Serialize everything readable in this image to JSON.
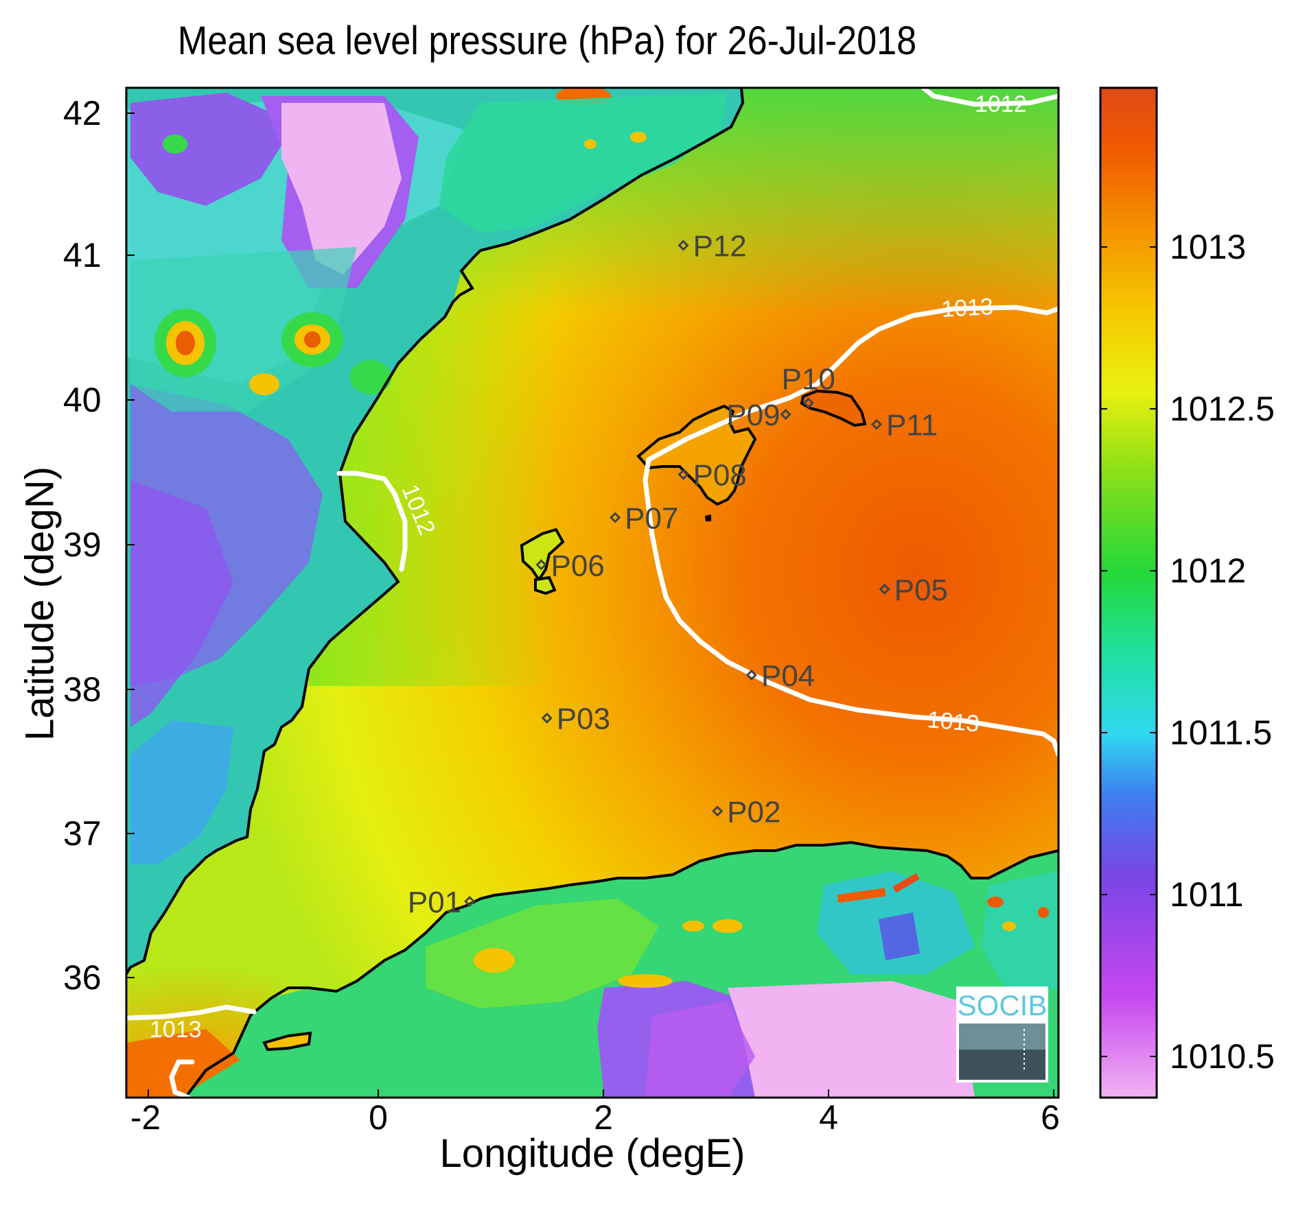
{
  "title": "Mean sea level pressure (hPa) for 26-Jul-2018",
  "xlabel": "Longitude (degE)",
  "ylabel": "Latitude (degN)",
  "x_ticks": [
    "-2",
    "0",
    "2",
    "4",
    "6"
  ],
  "y_ticks": [
    "42",
    "41",
    "40",
    "39",
    "38",
    "37",
    "36"
  ],
  "colorbar_ticks": [
    "1013",
    "1012.5",
    "1012",
    "1011.5",
    "1011",
    "1010.5"
  ],
  "logo_text": "SOCIB",
  "colors": {
    "coast": "#000000",
    "contour": "#ffffff",
    "marker": "#444444",
    "colormap": [
      "#f2b3f2",
      "#c648f0",
      "#7a45e6",
      "#3e7ff0",
      "#30d8f0",
      "#20e0a0",
      "#24d83a",
      "#8be018",
      "#eaf010",
      "#f5c800",
      "#f59200",
      "#f05a00",
      "#e04a18"
    ]
  },
  "chart_data": {
    "type": "heatmap",
    "title": "Mean sea level pressure (hPa) for 26-Jul-2018",
    "xlabel": "Longitude (degE)",
    "ylabel": "Latitude (degN)",
    "xlim": [
      -2.2,
      6.0
    ],
    "ylim": [
      35.15,
      42.2
    ],
    "colorbar": {
      "range": [
        1010.4,
        1013.45
      ],
      "ticks": [
        1010.5,
        1011,
        1011.5,
        1012,
        1012.5,
        1013
      ]
    },
    "contours": [
      {
        "label": "1012",
        "level": 1012
      },
      {
        "label": "1012",
        "level": 1012
      },
      {
        "label": "1013",
        "level": 1013
      },
      {
        "label": "1013",
        "level": 1013
      },
      {
        "label": "1013",
        "level": 1013
      }
    ],
    "stations": [
      {
        "name": "P01",
        "lon": 0.82,
        "lat": 36.52
      },
      {
        "name": "P02",
        "lon": 3.0,
        "lat": 37.15
      },
      {
        "name": "P03",
        "lon": 1.5,
        "lat": 37.8
      },
      {
        "name": "P04",
        "lon": 3.3,
        "lat": 38.1
      },
      {
        "name": "P05",
        "lon": 4.47,
        "lat": 38.7
      },
      {
        "name": "P06",
        "lon": 1.45,
        "lat": 38.87
      },
      {
        "name": "P07",
        "lon": 2.1,
        "lat": 39.2
      },
      {
        "name": "P08",
        "lon": 2.7,
        "lat": 39.5
      },
      {
        "name": "P09",
        "lon": 3.6,
        "lat": 39.92
      },
      {
        "name": "P10",
        "lon": 3.8,
        "lat": 40.0
      },
      {
        "name": "P11",
        "lon": 4.4,
        "lat": 39.85
      },
      {
        "name": "P12",
        "lon": 2.7,
        "lat": 41.1
      }
    ]
  }
}
